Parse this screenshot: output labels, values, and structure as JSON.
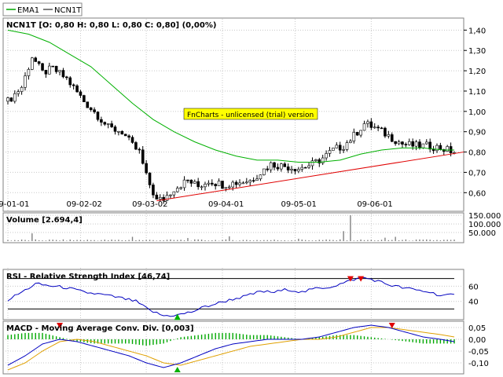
{
  "legend": [
    {
      "name": "EMA1",
      "color": "#00a800"
    },
    {
      "name": "NCN1T",
      "color": "#000000"
    }
  ],
  "colors": {
    "ema": "#00b000",
    "trend": "#e00000",
    "rsi": "#0000c0",
    "macd": "#0000c0",
    "signal": "#e0a000",
    "hist": "#00a800",
    "badge_bg": "#ffff00",
    "marker_sell": "#e00000",
    "marker_buy": "#00b000",
    "volume": "#808080"
  },
  "chart_data": [
    {
      "type": "candlestick",
      "title": "NCN1T [O: 0,80  H: 0,80  L: 0,80  C: 0,80] (0,00%)",
      "ylim": [
        0.52,
        1.44
      ],
      "yticks": [
        "1,40",
        "1,30",
        "1,20",
        "1,10",
        "1,00",
        "0,90",
        "0,80",
        "0,70",
        "0,60"
      ],
      "ytick_values": [
        1.4,
        1.3,
        1.2,
        1.1,
        1.0,
        0.9,
        0.8,
        0.7,
        0.6
      ],
      "xticks": [
        "09-01-01",
        "09-02-02",
        "09-03-02",
        "09-04-01",
        "09-05-01",
        "09-06-01"
      ],
      "xtick_index": [
        0,
        21,
        40,
        62,
        83,
        105
      ],
      "count": 130,
      "price_path": [
        [
          0,
          1.05
        ],
        [
          4,
          1.12
        ],
        [
          7,
          1.27
        ],
        [
          10,
          1.19
        ],
        [
          13,
          1.21
        ],
        [
          17,
          1.16
        ],
        [
          22,
          1.05
        ],
        [
          26,
          0.98
        ],
        [
          29,
          0.92
        ],
        [
          33,
          0.9
        ],
        [
          36,
          0.83
        ],
        [
          38,
          0.8
        ],
        [
          40,
          0.68
        ],
        [
          43,
          0.56
        ],
        [
          45,
          0.57
        ],
        [
          48,
          0.62
        ],
        [
          52,
          0.66
        ],
        [
          55,
          0.63
        ],
        [
          58,
          0.66
        ],
        [
          62,
          0.64
        ],
        [
          66,
          0.65
        ],
        [
          70,
          0.66
        ],
        [
          73,
          0.7
        ],
        [
          76,
          0.74
        ],
        [
          80,
          0.73
        ],
        [
          84,
          0.72
        ],
        [
          88,
          0.74
        ],
        [
          91,
          0.77
        ],
        [
          94,
          0.81
        ],
        [
          97,
          0.83
        ],
        [
          100,
          0.88
        ],
        [
          103,
          0.94
        ],
        [
          106,
          0.92
        ],
        [
          110,
          0.88
        ],
        [
          114,
          0.84
        ],
        [
          118,
          0.83
        ],
        [
          122,
          0.83
        ],
        [
          125,
          0.82
        ],
        [
          129,
          0.8
        ]
      ],
      "ema_path": [
        [
          0,
          1.4
        ],
        [
          6,
          1.38
        ],
        [
          12,
          1.34
        ],
        [
          18,
          1.28
        ],
        [
          24,
          1.22
        ],
        [
          30,
          1.13
        ],
        [
          36,
          1.04
        ],
        [
          42,
          0.96
        ],
        [
          48,
          0.9
        ],
        [
          54,
          0.85
        ],
        [
          60,
          0.81
        ],
        [
          66,
          0.78
        ],
        [
          72,
          0.76
        ],
        [
          78,
          0.76
        ],
        [
          84,
          0.75
        ],
        [
          90,
          0.75
        ],
        [
          96,
          0.76
        ],
        [
          102,
          0.79
        ],
        [
          108,
          0.81
        ],
        [
          114,
          0.82
        ],
        [
          120,
          0.82
        ],
        [
          126,
          0.81
        ],
        [
          129,
          0.81
        ]
      ],
      "trendline": [
        [
          43,
          0.56
        ],
        [
          135,
          0.8
        ]
      ],
      "annotation": "FnCharts - unlicensed (trial) version"
    },
    {
      "type": "bar",
      "title": "Volume [2.694,4]",
      "ylim": [
        0,
        155000
      ],
      "yticks": [
        "150.000",
        "100.000",
        "50.000"
      ],
      "ytick_values": [
        150000,
        100000,
        50000
      ],
      "spikes": [
        [
          7,
          45000
        ],
        [
          36,
          25000
        ],
        [
          52,
          18000
        ],
        [
          64,
          28000
        ],
        [
          84,
          14000
        ],
        [
          97,
          58000
        ],
        [
          99,
          150000
        ],
        [
          109,
          20000
        ],
        [
          112,
          25000
        ]
      ],
      "base": 6000
    },
    {
      "type": "line",
      "title": "RSI - Relative Strength Index [46,74]",
      "ylim": [
        18,
        80
      ],
      "yticks": [
        "60",
        "40"
      ],
      "ytick_values": [
        60,
        40
      ],
      "levels": [
        70,
        30
      ],
      "path": [
        [
          0,
          42
        ],
        [
          4,
          52
        ],
        [
          8,
          63
        ],
        [
          13,
          60
        ],
        [
          17,
          58
        ],
        [
          22,
          52
        ],
        [
          27,
          49
        ],
        [
          32,
          45
        ],
        [
          37,
          40
        ],
        [
          41,
          28
        ],
        [
          45,
          21
        ],
        [
          49,
          22
        ],
        [
          53,
          26
        ],
        [
          57,
          33
        ],
        [
          61,
          38
        ],
        [
          65,
          43
        ],
        [
          69,
          47
        ],
        [
          73,
          53
        ],
        [
          77,
          52
        ],
        [
          81,
          56
        ],
        [
          85,
          52
        ],
        [
          89,
          57
        ],
        [
          93,
          59
        ],
        [
          97,
          64
        ],
        [
          100,
          69
        ],
        [
          103,
          71
        ],
        [
          106,
          68
        ],
        [
          110,
          62
        ],
        [
          114,
          58
        ],
        [
          118,
          55
        ],
        [
          122,
          52
        ],
        [
          125,
          48
        ],
        [
          129,
          48
        ]
      ],
      "sell_markers": [
        99,
        102
      ],
      "buy_markers": [
        49
      ]
    },
    {
      "type": "line",
      "title": "MACD - Moving Average Conv. Div. [0,003]",
      "ylim": [
        -0.14,
        0.07
      ],
      "yticks": [
        "0,05",
        "0,00",
        "-0,05",
        "-0,10"
      ],
      "ytick_values": [
        0.05,
        0.0,
        -0.05,
        -0.1
      ],
      "macd_path": [
        [
          0,
          -0.11
        ],
        [
          5,
          -0.07
        ],
        [
          10,
          -0.02
        ],
        [
          15,
          0.0
        ],
        [
          20,
          -0.01
        ],
        [
          25,
          -0.03
        ],
        [
          30,
          -0.05
        ],
        [
          35,
          -0.07
        ],
        [
          40,
          -0.1
        ],
        [
          45,
          -0.12
        ],
        [
          50,
          -0.1
        ],
        [
          55,
          -0.07
        ],
        [
          60,
          -0.04
        ],
        [
          65,
          -0.02
        ],
        [
          70,
          -0.01
        ],
        [
          75,
          0.0
        ],
        [
          80,
          0.0
        ],
        [
          85,
          0.0
        ],
        [
          90,
          0.01
        ],
        [
          95,
          0.03
        ],
        [
          100,
          0.05
        ],
        [
          105,
          0.06
        ],
        [
          110,
          0.05
        ],
        [
          115,
          0.03
        ],
        [
          120,
          0.01
        ],
        [
          125,
          0.0
        ],
        [
          129,
          -0.01
        ]
      ],
      "signal_path": [
        [
          0,
          -0.13
        ],
        [
          5,
          -0.1
        ],
        [
          10,
          -0.05
        ],
        [
          15,
          -0.01
        ],
        [
          20,
          0.0
        ],
        [
          25,
          -0.01
        ],
        [
          30,
          -0.03
        ],
        [
          35,
          -0.05
        ],
        [
          40,
          -0.07
        ],
        [
          45,
          -0.1
        ],
        [
          50,
          -0.11
        ],
        [
          55,
          -0.09
        ],
        [
          60,
          -0.07
        ],
        [
          65,
          -0.05
        ],
        [
          70,
          -0.03
        ],
        [
          75,
          -0.02
        ],
        [
          80,
          -0.01
        ],
        [
          85,
          0.0
        ],
        [
          90,
          0.0
        ],
        [
          95,
          0.01
        ],
        [
          100,
          0.03
        ],
        [
          105,
          0.05
        ],
        [
          110,
          0.05
        ],
        [
          115,
          0.04
        ],
        [
          120,
          0.03
        ],
        [
          125,
          0.02
        ],
        [
          129,
          0.01
        ]
      ],
      "sell_markers": [
        15,
        111
      ],
      "buy_markers": [
        49
      ]
    }
  ]
}
